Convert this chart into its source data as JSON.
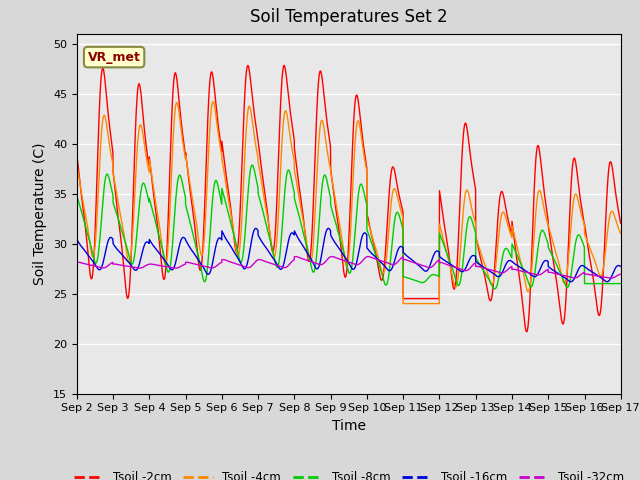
{
  "title": "Soil Temperatures Set 2",
  "xlabel": "Time",
  "ylabel": "Soil Temperature (C)",
  "ylim": [
    15,
    51
  ],
  "yticks": [
    15,
    20,
    25,
    30,
    35,
    40,
    45,
    50
  ],
  "xlim_days": [
    0,
    15
  ],
  "xtick_labels": [
    "Sep 2",
    "Sep 3",
    "Sep 4",
    "Sep 5",
    "Sep 6",
    "Sep 7",
    "Sep 8",
    "Sep 9",
    "Sep 10",
    "Sep 11",
    "Sep 12",
    "Sep 13",
    "Sep 14",
    "Sep 15",
    "Sep 16",
    "Sep 17"
  ],
  "xtick_positions": [
    0,
    1,
    2,
    3,
    4,
    5,
    6,
    7,
    8,
    9,
    10,
    11,
    12,
    13,
    14,
    15
  ],
  "annotation_text": "VR_met",
  "colors": {
    "Tsoil_2cm": "#ff0000",
    "Tsoil_4cm": "#ff8800",
    "Tsoil_8cm": "#00cc00",
    "Tsoil_16cm": "#0000dd",
    "Tsoil_32cm": "#cc00cc"
  },
  "legend_labels": [
    "Tsoil -2cm",
    "Tsoil -4cm",
    "Tsoil -8cm",
    "Tsoil -16cm",
    "Tsoil -32cm"
  ],
  "fig_bg_color": "#d8d8d8",
  "plot_bg_color": "#e8e8e8",
  "title_fontsize": 12,
  "axis_fontsize": 10,
  "tick_fontsize": 8
}
